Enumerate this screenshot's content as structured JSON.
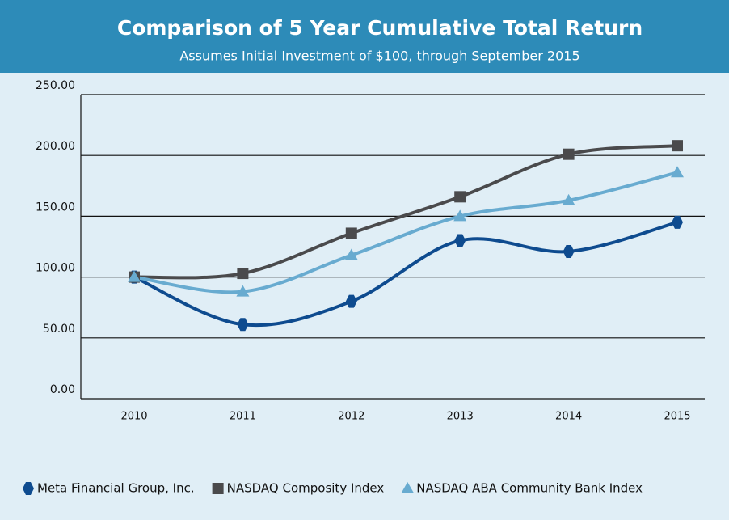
{
  "chart_data": {
    "type": "line",
    "title": "Comparison of 5 Year Cumulative Total Return",
    "subtitle": "Assumes Initial Investment of $100, through September 2015",
    "categories": [
      "2010",
      "2011",
      "2012",
      "2013",
      "2014",
      "2015"
    ],
    "series": [
      {
        "name": "Meta Financial Group, Inc.",
        "color": "#0e4b8f",
        "marker": "hexagon",
        "values": [
          100,
          61,
          80,
          130,
          121,
          145
        ]
      },
      {
        "name": "NASDAQ Composity Index",
        "color": "#4a4a4c",
        "marker": "square",
        "values": [
          100,
          103,
          136,
          166,
          201,
          208
        ]
      },
      {
        "name": "NASDAQ ABA Community Bank Index",
        "color": "#68abd0",
        "marker": "triangle",
        "values": [
          100,
          88,
          118,
          150,
          163,
          186
        ]
      }
    ],
    "ylim": [
      0,
      250
    ],
    "yticks": [
      {
        "value": 0,
        "label": "0.00"
      },
      {
        "value": 50,
        "label": "50.00"
      },
      {
        "value": 100,
        "label": "100.00"
      },
      {
        "value": 150,
        "label": "150.00"
      },
      {
        "value": 200,
        "label": "200.00"
      },
      {
        "value": 250,
        "label": "250.00"
      }
    ],
    "grid": true,
    "smooth": true,
    "legend": "bottom"
  }
}
